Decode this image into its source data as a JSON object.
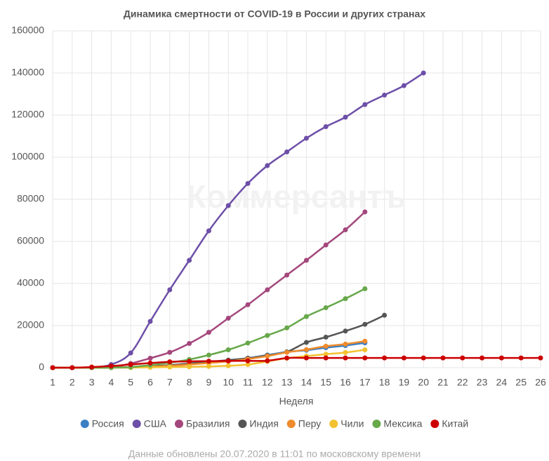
{
  "chart_data": {
    "type": "line",
    "title": "Динамика смертности от COVID-19 в России и других странах",
    "watermark": "Коммерсантъ",
    "x_label": "Неделя",
    "note": "Данные обновлены 20.07.2020 в 11:01 по московскому времени",
    "x": [
      1,
      2,
      3,
      4,
      5,
      6,
      7,
      8,
      9,
      10,
      11,
      12,
      13,
      14,
      15,
      16,
      17,
      18,
      19,
      20,
      21,
      22,
      23,
      24,
      25,
      26
    ],
    "xlim": [
      1,
      26
    ],
    "xticks": [
      1,
      2,
      3,
      4,
      5,
      6,
      7,
      8,
      9,
      10,
      11,
      12,
      13,
      14,
      15,
      16,
      17,
      18,
      19,
      20,
      21,
      22,
      23,
      24,
      25,
      26
    ],
    "ylim": [
      0,
      160000
    ],
    "yticks": [
      0,
      20000,
      40000,
      60000,
      80000,
      100000,
      120000,
      140000,
      160000
    ],
    "grid": true,
    "legend": "bottom",
    "series": [
      {
        "name": "Россия",
        "color": "#3b7fc4",
        "values": [
          0,
          0,
          0,
          30,
          100,
          500,
          1000,
          1700,
          2400,
          3200,
          4500,
          6000,
          7500,
          8300,
          9500,
          10500,
          11800,
          null,
          null,
          null,
          null,
          null,
          null,
          null,
          null,
          null
        ]
      },
      {
        "name": "США",
        "color": "#6d4fa8",
        "values": [
          0,
          0,
          200,
          1500,
          7000,
          22000,
          37000,
          51000,
          65000,
          77000,
          87500,
          96000,
          102500,
          109000,
          114500,
          119000,
          125000,
          129500,
          134000,
          140000,
          null,
          null,
          null,
          null,
          null,
          null
        ]
      },
      {
        "name": "Бразилия",
        "color": "#a4477c",
        "values": [
          0,
          0,
          0,
          200,
          2000,
          4500,
          7300,
          11500,
          16800,
          23500,
          29900,
          37000,
          44000,
          51000,
          58300,
          65500,
          74000,
          null,
          null,
          null,
          null,
          null,
          null,
          null,
          null,
          null
        ]
      },
      {
        "name": "Индия",
        "color": "#555555",
        "values": [
          0,
          0,
          10,
          50,
          200,
          700,
          1200,
          2000,
          2800,
          3600,
          4500,
          5800,
          7500,
          12000,
          14500,
          17400,
          20600,
          24900,
          null,
          null,
          null,
          null,
          null,
          null,
          null,
          null
        ]
      },
      {
        "name": "Перу",
        "color": "#ef8b2c",
        "values": [
          0,
          0,
          0,
          50,
          200,
          500,
          900,
          1500,
          2200,
          3000,
          4100,
          5500,
          7300,
          8600,
          10200,
          11200,
          12600,
          null,
          null,
          null,
          null,
          null,
          null,
          null,
          null,
          null
        ]
      },
      {
        "name": "Чили",
        "color": "#f2c230",
        "values": [
          0,
          0,
          0,
          0,
          50,
          150,
          300,
          400,
          600,
          900,
          1500,
          3000,
          4500,
          5500,
          6400,
          7200,
          8500,
          null,
          null,
          null,
          null,
          null,
          null,
          null,
          null,
          null
        ]
      },
      {
        "name": "Мексика",
        "color": "#67a84a",
        "values": [
          0,
          0,
          0,
          50,
          300,
          1200,
          2400,
          3900,
          6000,
          8500,
          11700,
          15300,
          18900,
          24300,
          28500,
          32800,
          37500,
          null,
          null,
          null,
          null,
          null,
          null,
          null,
          null,
          null
        ]
      },
      {
        "name": "Китай",
        "color": "#cc0000",
        "values": [
          0,
          10,
          300,
          800,
          1500,
          2200,
          2800,
          3000,
          3100,
          3200,
          3250,
          3300,
          4600,
          4630,
          4630,
          4630,
          4630,
          4630,
          4630,
          4630,
          4630,
          4630,
          4630,
          4630,
          4630,
          4630
        ]
      }
    ]
  }
}
